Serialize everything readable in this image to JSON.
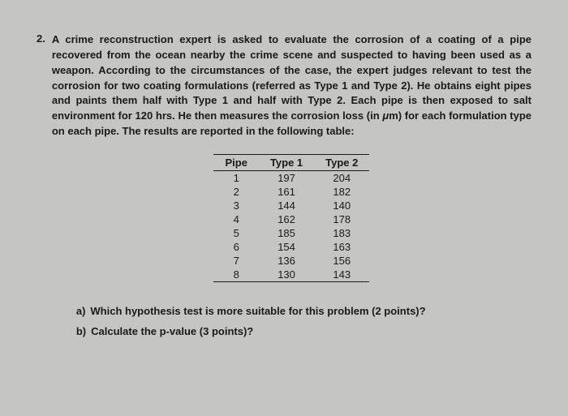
{
  "question": {
    "number": "2.",
    "text": "A crime reconstruction expert is asked to evaluate the corrosion of a coating of a pipe recovered from the ocean nearby the crime scene and suspected to having been used as a weapon. According to the circumstances of the case, the expert judges relevant to test the corrosion for two coating formulations (referred as Type 1 and Type 2). He obtains eight pipes and paints them half with Type 1 and half with Type 2. Each pipe is then exposed to salt environment for 120 hrs. He then measures the corrosion loss (in μm) for each formulation type on each pipe. The results are reported in the following table:"
  },
  "table": {
    "headers": [
      "Pipe",
      "Type 1",
      "Type 2"
    ],
    "rows": [
      [
        "1",
        "197",
        "204"
      ],
      [
        "2",
        "161",
        "182"
      ],
      [
        "3",
        "144",
        "140"
      ],
      [
        "4",
        "162",
        "178"
      ],
      [
        "5",
        "185",
        "183"
      ],
      [
        "6",
        "154",
        "163"
      ],
      [
        "7",
        "136",
        "156"
      ],
      [
        "8",
        "130",
        "143"
      ]
    ]
  },
  "subquestions": {
    "a": {
      "label": "a)",
      "text": "Which hypothesis test is more suitable for this problem (2 points)?"
    },
    "b": {
      "label": "b)",
      "text": "Calculate the p-value (3 points)?"
    }
  },
  "colors": {
    "background": "#c5c5c3",
    "text": "#1a1a1a",
    "border": "#1a1a1a"
  }
}
